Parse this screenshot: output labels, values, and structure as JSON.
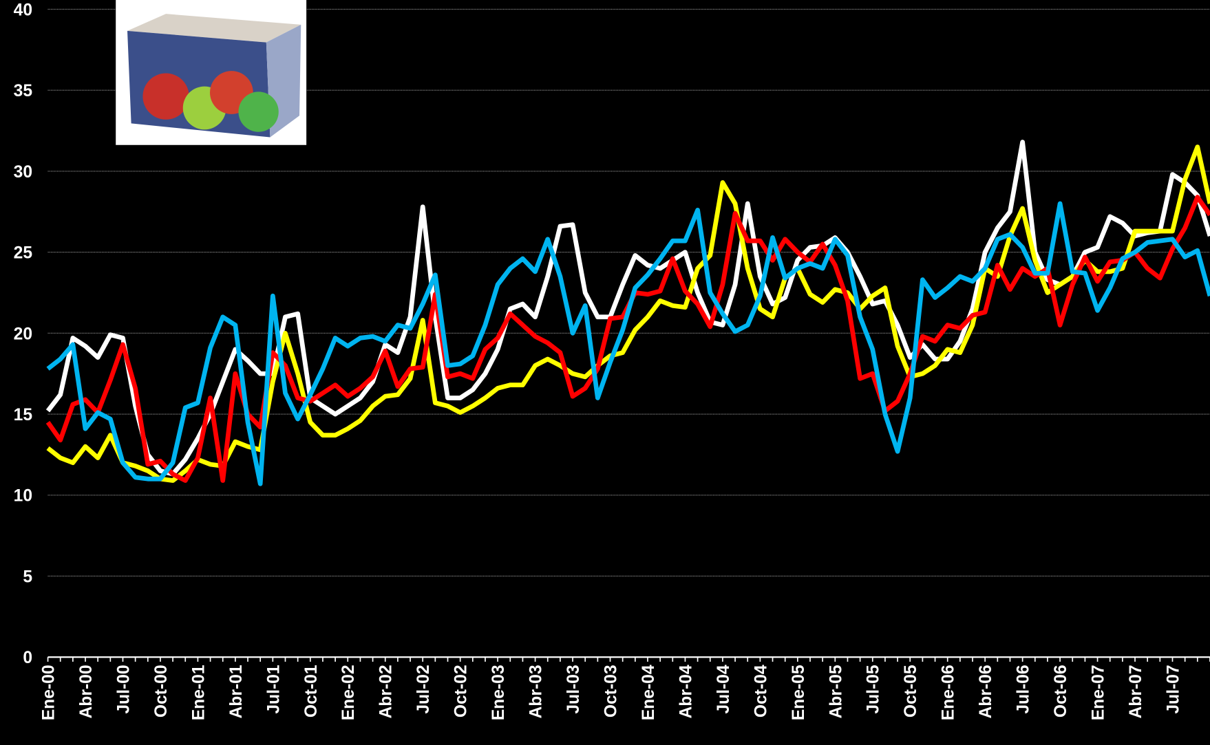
{
  "chart_data": {
    "type": "line",
    "categories": [
      "Ene-00",
      null,
      null,
      "Abr-00",
      null,
      null,
      "Jul-00",
      null,
      null,
      "Oct-00",
      null,
      null,
      "Ene-01",
      null,
      null,
      "Abr-01",
      null,
      null,
      "Jul-01",
      null,
      null,
      "Oct-01",
      null,
      null,
      "Ene-02",
      null,
      null,
      "Abr-02",
      null,
      null,
      "Jul-02",
      null,
      null,
      "Oct-02",
      null,
      null,
      "Ene-03",
      null,
      null,
      "Abr-03",
      null,
      null,
      "Jul-03",
      null,
      null,
      "Oct-03",
      null,
      null,
      "Ene-04",
      null,
      null,
      "Abr-04",
      null,
      null,
      "Jul-04",
      null,
      null,
      "Oct-04",
      null,
      null,
      "Ene-05",
      null,
      null,
      "Abr-05",
      null,
      null,
      "Jul-05",
      null,
      null,
      "Oct-05",
      null,
      null,
      "Ene-06",
      null,
      null,
      "Abr-06",
      null,
      null,
      "Jul-06",
      null,
      null,
      "Oct-06",
      null,
      null,
      "Ene-07",
      null,
      null,
      "Abr-07",
      null,
      null,
      "Jul-07",
      null,
      null,
      null
    ],
    "series": [
      {
        "color": "#ffffff",
        "values": [
          15.2,
          16.2,
          19.7,
          19.2,
          18.5,
          19.9,
          19.7,
          15.5,
          12.5,
          11.5,
          11.3,
          12.2,
          13.5,
          15,
          17,
          19,
          18.3,
          17.5,
          17.5,
          21,
          21.2,
          16,
          15.5,
          15,
          15.5,
          16,
          17,
          19.3,
          18.8,
          21,
          27.8,
          21,
          16,
          16,
          16.5,
          17.5,
          19,
          21.5,
          21.8,
          21,
          23.5,
          26.6,
          26.7,
          22.5,
          21,
          21,
          23,
          24.8,
          24.2,
          24,
          24.5,
          25,
          22.5,
          20.7,
          20.5,
          23,
          28,
          23.5,
          21.8,
          22.2,
          24.5,
          25.3,
          25.4,
          25.9,
          25,
          23.5,
          21.8,
          22,
          20.5,
          18.5,
          19.3,
          18.4,
          18.4,
          19.5,
          21.5,
          25,
          26.5,
          27.5,
          31.8,
          25,
          23.3,
          23,
          23.5,
          25,
          25.3,
          27.2,
          26.8,
          26,
          26.2,
          26.3,
          29.8,
          29.3,
          28.5,
          26
        ]
      },
      {
        "color": "#ffff00",
        "values": [
          12.9,
          12.3,
          12.0,
          13.0,
          12.3,
          13.7,
          12.0,
          11.8,
          11.5,
          11.0,
          10.9,
          11.5,
          12.2,
          11.9,
          11.8,
          13.3,
          13,
          12.8,
          17,
          20,
          17.5,
          14.5,
          13.7,
          13.7,
          14.1,
          14.6,
          15.5,
          16.1,
          16.2,
          17.2,
          20.8,
          15.7,
          15.5,
          15.1,
          15.5,
          16,
          16.6,
          16.8,
          16.8,
          18,
          18.4,
          18,
          17.5,
          17.3,
          18,
          18.6,
          18.8,
          20.2,
          21,
          22,
          21.7,
          21.6,
          24,
          24.8,
          29.3,
          28,
          24,
          21.5,
          21,
          23.4,
          24,
          22.4,
          21.9,
          22.7,
          22.5,
          21.5,
          22.3,
          22.8,
          19.2,
          17.3,
          17.5,
          18,
          19,
          18.8,
          20.5,
          24,
          23.5,
          26,
          27.7,
          24.5,
          22.5,
          23,
          23.5,
          24.5,
          23.8,
          23.8,
          24,
          26.3,
          26.3,
          26.3,
          26.3,
          29.5,
          31.5,
          28
        ]
      },
      {
        "color": "#ff0000",
        "values": [
          14.5,
          13.4,
          15.6,
          15.9,
          15.1,
          17.1,
          19.3,
          16.6,
          11.9,
          12.1,
          11.3,
          10.9,
          12.3,
          16,
          10.9,
          17.5,
          15,
          14.2,
          18.8,
          18,
          16,
          15.8,
          16.3,
          16.8,
          16.1,
          16.6,
          17.3,
          18.9,
          16.7,
          17.8,
          17.9,
          22.4,
          17.3,
          17.5,
          17.2,
          19,
          19.7,
          21.2,
          20.5,
          19.8,
          19.4,
          18.8,
          16.1,
          16.6,
          17.8,
          20.9,
          21,
          22.5,
          22.4,
          22.6,
          24.6,
          22.6,
          21.8,
          20.4,
          23,
          27.4,
          25.7,
          25.7,
          24.5,
          25.8,
          25,
          24.4,
          25.5,
          24.2,
          22,
          17.2,
          17.5,
          15.2,
          15.8,
          17.5,
          19.8,
          19.5,
          20.5,
          20.3,
          21.1,
          21.3,
          24.2,
          22.7,
          24,
          23.5,
          24,
          20.5,
          23,
          24.7,
          23.2,
          24.4,
          24.5,
          25,
          24,
          23.4,
          25.2,
          26.5,
          28.4,
          27.3
        ]
      },
      {
        "color": "#00b4f0",
        "values": [
          17.8,
          18.4,
          19.3,
          14.1,
          15.1,
          14.7,
          12,
          11.1,
          11,
          11,
          12,
          15.4,
          15.7,
          19.1,
          21,
          20.5,
          14.5,
          10.7,
          22.3,
          16.3,
          14.7,
          16.2,
          17.8,
          19.7,
          19.2,
          19.7,
          19.8,
          19.5,
          20.5,
          20.3,
          21.8,
          23.6,
          18,
          18.1,
          18.6,
          20.5,
          23,
          24,
          24.6,
          23.8,
          25.8,
          23.5,
          20,
          21.7,
          16,
          18.2,
          20.2,
          22.8,
          23.6,
          24.6,
          25.7,
          25.7,
          27.6,
          22.5,
          21.2,
          20.1,
          20.5,
          22.3,
          25.9,
          23.4,
          24,
          24.3,
          24,
          25.8,
          24.8,
          21,
          19,
          15,
          12.7,
          16,
          23.3,
          22.2,
          22.8,
          23.5,
          23.2,
          24,
          25.8,
          26.1,
          25.3,
          23.7,
          23.7,
          28,
          23.8,
          23.7,
          21.4,
          22.8,
          24.6,
          25,
          25.6,
          25.7,
          25.8,
          24.7,
          25.1,
          22.3
        ]
      }
    ],
    "ylim": [
      0,
      40
    ],
    "yticks": [
      0,
      5,
      10,
      15,
      20,
      25,
      30,
      35,
      40
    ],
    "grid": true
  }
}
